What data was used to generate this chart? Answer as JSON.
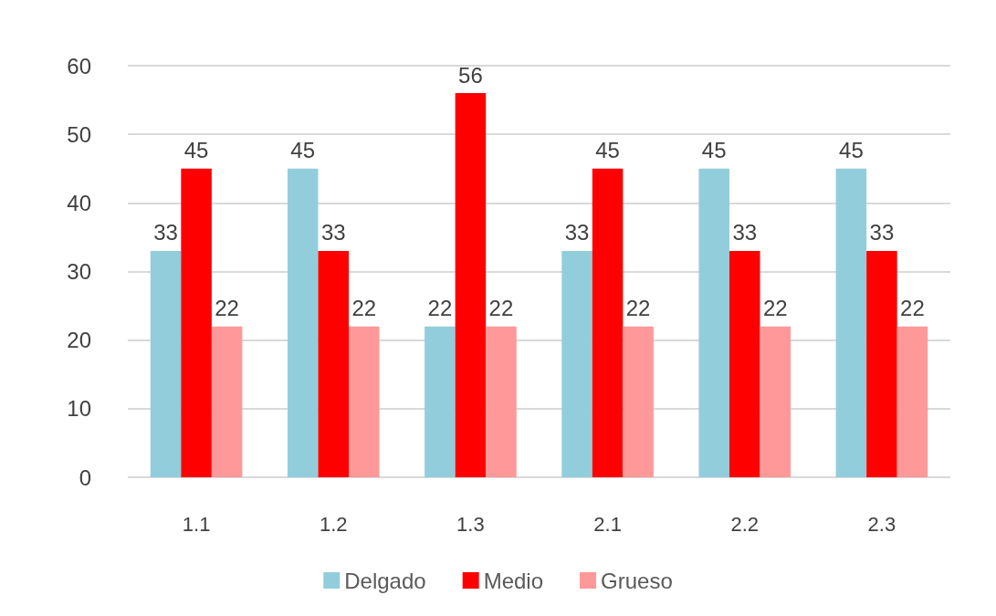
{
  "chart_data": {
    "type": "bar",
    "categories": [
      "1.1",
      "1.2",
      "1.3",
      "2.1",
      "2.2",
      "2.3"
    ],
    "series": [
      {
        "name": "Delgado",
        "color": "#92cddc",
        "values": [
          33,
          45,
          22,
          33,
          45,
          45
        ]
      },
      {
        "name": "Medio",
        "color": "#ff0000",
        "values": [
          45,
          33,
          56,
          45,
          33,
          33
        ]
      },
      {
        "name": "Grueso",
        "color": "#ff9999",
        "values": [
          22,
          22,
          22,
          22,
          22,
          22
        ]
      }
    ],
    "ylim": [
      0,
      60
    ],
    "yticks": [
      0,
      10,
      20,
      30,
      40,
      50,
      60
    ],
    "grid": "y",
    "legend": "bottom",
    "data_labels": true
  }
}
